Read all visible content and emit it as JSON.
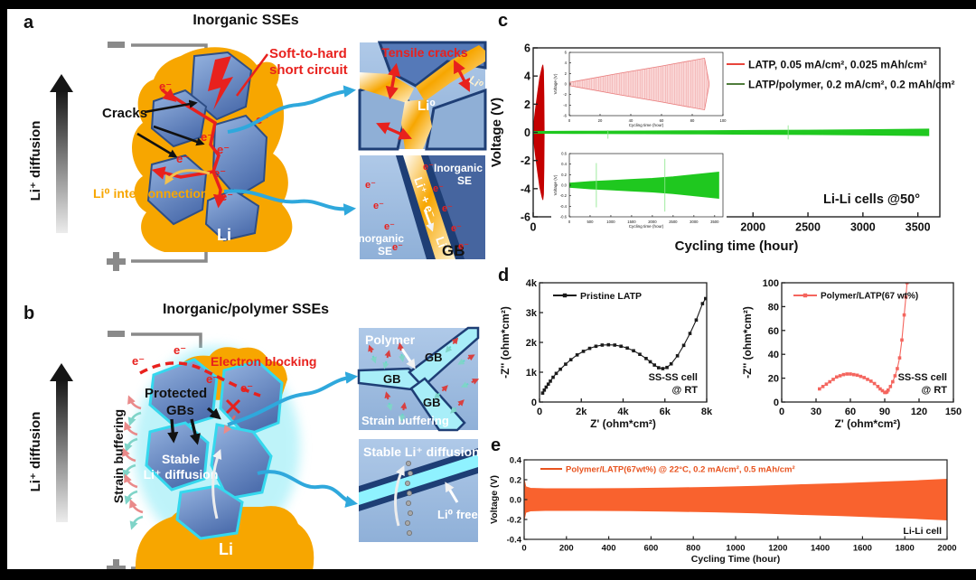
{
  "figure": {
    "labels": {
      "a": "a",
      "b": "b",
      "c": "c",
      "d": "d",
      "e": "e"
    }
  },
  "panel_a": {
    "title": "Inorganic SSEs",
    "li_diffusion": "Li⁺ diffusion",
    "cracks": "Cracks",
    "sc1": "Soft-to-hard",
    "sc2": "short circuit",
    "e_label": "e⁻",
    "li0_interconnection": "Li⁰ interconnection",
    "li": "Li",
    "inset_top": {
      "title": "Tensile cracks",
      "li0": "Li⁰"
    },
    "inset_bottom": {
      "reaction_li": "Li⁺ + e⁻",
      "reaction_li0": "Li⁰",
      "inorganic": "Inorganic",
      "se": "SE",
      "gb": "GB"
    }
  },
  "panel_b": {
    "title": "Inorganic/polymer SSEs",
    "li_diffusion": "Li⁺ diffusion",
    "strain_buffering": "Strain buffering",
    "electron_blocking": "Electron blocking",
    "protected1": "Protected",
    "protected2": "GBs",
    "stable1": "Stable",
    "stable2": "Li⁺ diffusion",
    "e_label": "e⁻",
    "li": "Li",
    "inset_top": {
      "polymer": "Polymer",
      "gb": "GB",
      "strain_buffering": "Strain buffering"
    },
    "inset_bottom": {
      "title": "Stable Li⁺ diffusion",
      "li0_free": "Li⁰ free"
    }
  },
  "chart_data": [
    {
      "id": "c",
      "type": "line-envelope",
      "xlabel": "Cycling time (hour)",
      "ylabel": "Voltage (V)",
      "xlim": [
        0,
        3700
      ],
      "ylim": [
        -6,
        6
      ],
      "xticks": [
        0,
        500,
        1000,
        1500,
        2000,
        2500,
        3000,
        3500
      ],
      "xtick_labels": [
        "0",
        "500",
        "1000",
        "1500",
        "2000",
        "2500",
        "3000",
        "3500"
      ],
      "yticks": [
        -6,
        -4,
        -2,
        0,
        2,
        4,
        6
      ],
      "ytick_labels": [
        "-6",
        "-4",
        "-2",
        "0",
        "2",
        "4",
        "6"
      ],
      "annotation": "Li-Li cells @50°",
      "legend": [
        {
          "label": "LATP, 0.05 mA/cm², 0.025 mAh/cm²",
          "color": "#E8453C"
        },
        {
          "label": "LATP/polymer, 0.2 mA/cm², 0.2 mAh/cm²",
          "color": "#4F7D3C"
        }
      ],
      "series": [
        {
          "name": "LATP",
          "color": "#C40000",
          "envelope_x": [
            0,
            20,
            40,
            60,
            80,
            88,
            94,
            98,
            100
          ],
          "envelope_amp": [
            0.3,
            1.6,
            2.8,
            3.9,
            4.6,
            4.8,
            4.4,
            2.5,
            0.3
          ]
        },
        {
          "name": "LATP/polymer",
          "color": "#1FC81F",
          "spike_color": "#8FE88F",
          "envelope_x": [
            0,
            500,
            1000,
            1500,
            2000,
            2500,
            3000,
            3600
          ],
          "envelope_amp": [
            0.07,
            0.09,
            0.1,
            0.12,
            0.14,
            0.16,
            0.19,
            0.24
          ],
          "spikes": [
            {
              "x": 680,
              "amp": 0.45
            },
            {
              "x": 2320,
              "amp": 0.5
            }
          ]
        }
      ],
      "insets": [
        {
          "xlabel": "Cycling time (hour)",
          "ylabel": "Voltage (V)",
          "xlim": [
            0,
            100
          ],
          "xticks": [
            0,
            20,
            40,
            60,
            80,
            100
          ],
          "xtick_labels": [
            "0",
            "20",
            "40",
            "60",
            "80",
            "100"
          ],
          "ylim": [
            -6,
            6
          ],
          "yticks": [
            -6,
            -4,
            -2,
            0,
            2,
            4,
            6
          ],
          "ytick_labels": [
            "-6",
            "-4",
            "-2",
            "0",
            "2",
            "4",
            "6"
          ],
          "series": {
            "color": "#FAD7D7",
            "stroke": "#E87878",
            "hatch": "#EFA0A0",
            "envelope_x": [
              0,
              30,
              60,
              88,
              91
            ],
            "envelope_amp": [
              0.3,
              1.9,
              3.4,
              4.9,
              0.2
            ]
          }
        },
        {
          "xlabel": "Cycling time (hour)",
          "ylabel": "Voltage (V)",
          "xlim": [
            0,
            3700
          ],
          "xticks": [
            0,
            500,
            1000,
            1500,
            2000,
            2500,
            3000,
            3500
          ],
          "xtick_labels": [
            "0",
            "500",
            "1000",
            "1500",
            "2000",
            "2500",
            "3000",
            "3500"
          ],
          "ylim": [
            -0.6,
            0.6
          ],
          "yticks": [
            -0.6,
            -0.4,
            -0.2,
            0,
            0.2,
            0.4,
            0.6
          ],
          "ytick_labels": [
            "-0.6",
            "-0.4",
            "-0.2",
            "0.0",
            "0.2",
            "0.4",
            "0.6"
          ],
          "series": {
            "color": "#1FC81F",
            "spike_color": "#8FE88F",
            "envelope_x": [
              0,
              500,
              1000,
              1500,
              2000,
              2500,
              3000,
              3600
            ],
            "envelope_amp": [
              0.04,
              0.07,
              0.09,
              0.11,
              0.13,
              0.16,
              0.2,
              0.25
            ],
            "spikes": [
              {
                "x": 650,
                "amp": 0.42
              },
              {
                "x": 2300,
                "amp": 0.5
              }
            ]
          }
        }
      ]
    },
    {
      "id": "d1",
      "type": "scatter-line",
      "xlabel": "Z' (ohm*cm²)",
      "ylabel": "-Z'' (ohm*cm²)",
      "xlim": [
        0,
        8000
      ],
      "ylim": [
        0,
        4000
      ],
      "xticks": [
        0,
        2000,
        4000,
        6000,
        8000
      ],
      "xtick_labels": [
        "0",
        "2k",
        "4k",
        "6k",
        "8k"
      ],
      "yticks": [
        0,
        1000,
        2000,
        3000,
        4000
      ],
      "ytick_labels": [
        "0",
        "1k",
        "2k",
        "3k",
        "4k"
      ],
      "legend": {
        "label": "Pristine LATP",
        "color": "#1a1a1a"
      },
      "annotation": [
        "SS-SS cell",
        "@ RT"
      ],
      "x": [
        150,
        230,
        320,
        420,
        520,
        650,
        800,
        1000,
        1250,
        1500,
        1800,
        2100,
        2400,
        2700,
        3000,
        3300,
        3600,
        3900,
        4200,
        4500,
        4800,
        5100,
        5300,
        5500,
        5700,
        5900,
        6100,
        6300,
        6600,
        6900,
        7200,
        7500,
        7800,
        7950
      ],
      "y": [
        300,
        400,
        500,
        600,
        700,
        830,
        960,
        1100,
        1270,
        1420,
        1580,
        1700,
        1800,
        1870,
        1910,
        1920,
        1910,
        1870,
        1810,
        1720,
        1600,
        1460,
        1350,
        1240,
        1150,
        1120,
        1160,
        1280,
        1550,
        1900,
        2300,
        2750,
        3300,
        3470
      ]
    },
    {
      "id": "d2",
      "type": "scatter-line",
      "xlabel": "Z' (ohm*cm²)",
      "ylabel": "-Z'' (ohm*cm²)",
      "xlim": [
        0,
        150
      ],
      "ylim": [
        0,
        100
      ],
      "xticks": [
        0,
        30,
        60,
        90,
        120,
        150
      ],
      "xtick_labels": [
        "0",
        "30",
        "60",
        "90",
        "120",
        "150"
      ],
      "yticks": [
        0,
        20,
        40,
        60,
        80,
        100
      ],
      "ytick_labels": [
        "0",
        "20",
        "40",
        "60",
        "80",
        "100"
      ],
      "legend": {
        "label": "Polymer/LATP(67 wt%)",
        "color": "#F4655E"
      },
      "annotation": [
        "SS-SS cell",
        "@ RT"
      ],
      "x": [
        33,
        36,
        39,
        42,
        45,
        48,
        51,
        54,
        57,
        60,
        63,
        66,
        69,
        72,
        75,
        78,
        81,
        84,
        86,
        88,
        90,
        91,
        92,
        93,
        95,
        97,
        99,
        101,
        103,
        105,
        107,
        108.5,
        109.5
      ],
      "y": [
        11,
        13,
        15,
        17,
        19,
        21,
        22,
        23,
        23.5,
        23.5,
        23,
        22.5,
        21.5,
        20.5,
        19,
        17.5,
        15.5,
        13,
        11,
        9.5,
        8,
        8,
        8.5,
        10,
        13,
        17,
        22,
        28,
        37,
        52,
        73,
        88,
        100
      ]
    },
    {
      "id": "e",
      "type": "envelope",
      "xlabel": "Cycling Time (hour)",
      "ylabel": "Voltage (V)",
      "xlim": [
        0,
        2000
      ],
      "ylim": [
        -0.4,
        0.4
      ],
      "xticks": [
        0,
        200,
        400,
        600,
        800,
        1000,
        1200,
        1400,
        1600,
        1800,
        2000
      ],
      "xtick_labels": [
        "0",
        "200",
        "400",
        "600",
        "800",
        "1000",
        "1200",
        "1400",
        "1600",
        "1800",
        "2000"
      ],
      "yticks": [
        -0.4,
        -0.2,
        0,
        0.2,
        0.4
      ],
      "ytick_labels": [
        "-0.4",
        "-0.2",
        "0.0",
        "0.2",
        "0.4"
      ],
      "legend": {
        "label": "Polymer/LATP(67wt%) @ 22°C, 0.2 mA/cm², 0.5 mAh/cm²",
        "color": "#E8531F"
      },
      "annotation": "Li-Li cell",
      "series": {
        "color": "#F9622E",
        "envelope_x": [
          0,
          8,
          30,
          100,
          300,
          500,
          700,
          900,
          1100,
          1300,
          1500,
          1700,
          1850,
          2000
        ],
        "envelope_amp": [
          0.21,
          0.13,
          0.115,
          0.11,
          0.11,
          0.112,
          0.118,
          0.125,
          0.135,
          0.15,
          0.162,
          0.178,
          0.19,
          0.205
        ]
      }
    }
  ]
}
